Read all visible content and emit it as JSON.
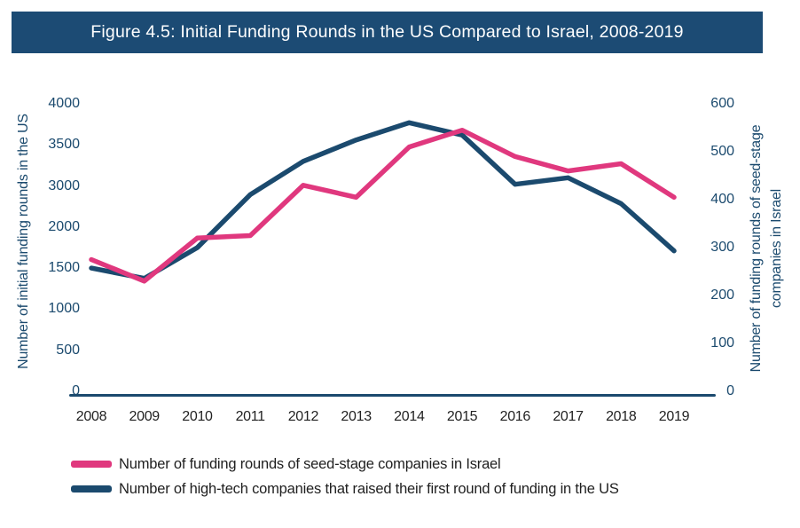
{
  "title_bar": {
    "text": "Figure 4.5: Initial Funding Rounds in the US Compared to Israel, 2008-2019"
  },
  "colors": {
    "navy": "#1B4A6E",
    "pink": "#E0387E",
    "title_bar_bg": "#1C4B74",
    "axis_text": "#1B4A6E",
    "year_text": "#222222",
    "legend_text": "#1F1F1F"
  },
  "left_axis": {
    "title": "Number of initial funding rounds in the US",
    "ticks": [
      "4000",
      "3500",
      "3000",
      "2000",
      "1500",
      "1000",
      "500",
      "0"
    ]
  },
  "right_axis": {
    "title_line1": "Number of funding rounds of seed-stage",
    "title_line2": "companies in Israel",
    "ticks": [
      "600",
      "500",
      "400",
      "300",
      "200",
      "100",
      "0"
    ]
  },
  "x_axis": {
    "years": [
      "2008",
      "2009",
      "2010",
      "2011",
      "2012",
      "2013",
      "2014",
      "2015",
      "2016",
      "2017",
      "2018",
      "2019"
    ]
  },
  "legend": {
    "items": [
      {
        "label": "Number of funding rounds of seed-stage companies in Israel",
        "color": "#E0387E"
      },
      {
        "label": "Number of high-tech companies that raised their first round of funding in the US",
        "color": "#1B4A6E"
      }
    ]
  },
  "chart_data": {
    "type": "line",
    "title": "Figure 4.5: Initial Funding Rounds in the US Compared to Israel, 2008-2019",
    "x": [
      2008,
      2009,
      2010,
      2011,
      2012,
      2013,
      2014,
      2015,
      2016,
      2017,
      2018,
      2019
    ],
    "series": [
      {
        "name": "Number of high-tech companies that raised their first round of funding in the US",
        "axis": "left",
        "color": "#1B4A6E",
        "values": [
          1500,
          1375,
          1750,
          2790,
          3300,
          3560,
          3770,
          3620,
          3020,
          3100,
          2570,
          1710
        ]
      },
      {
        "name": "Number of funding rounds of seed-stage companies in Israel",
        "axis": "right",
        "color": "#E0387E",
        "values": [
          275,
          230,
          320,
          325,
          430,
          405,
          510,
          545,
          490,
          460,
          475,
          405
        ]
      }
    ],
    "left_axis": {
      "label": "Number of initial funding rounds in the US",
      "tick_values_as_printed": [
        4000,
        3500,
        3000,
        2000,
        1500,
        1000,
        500,
        0
      ],
      "tick_spacing": "uniform"
    },
    "right_axis": {
      "label": "Number of funding rounds of seed-stage companies in Israel",
      "range": [
        0,
        600
      ],
      "tick_step": 100
    },
    "grid": false,
    "legend_position": "bottom-left"
  }
}
